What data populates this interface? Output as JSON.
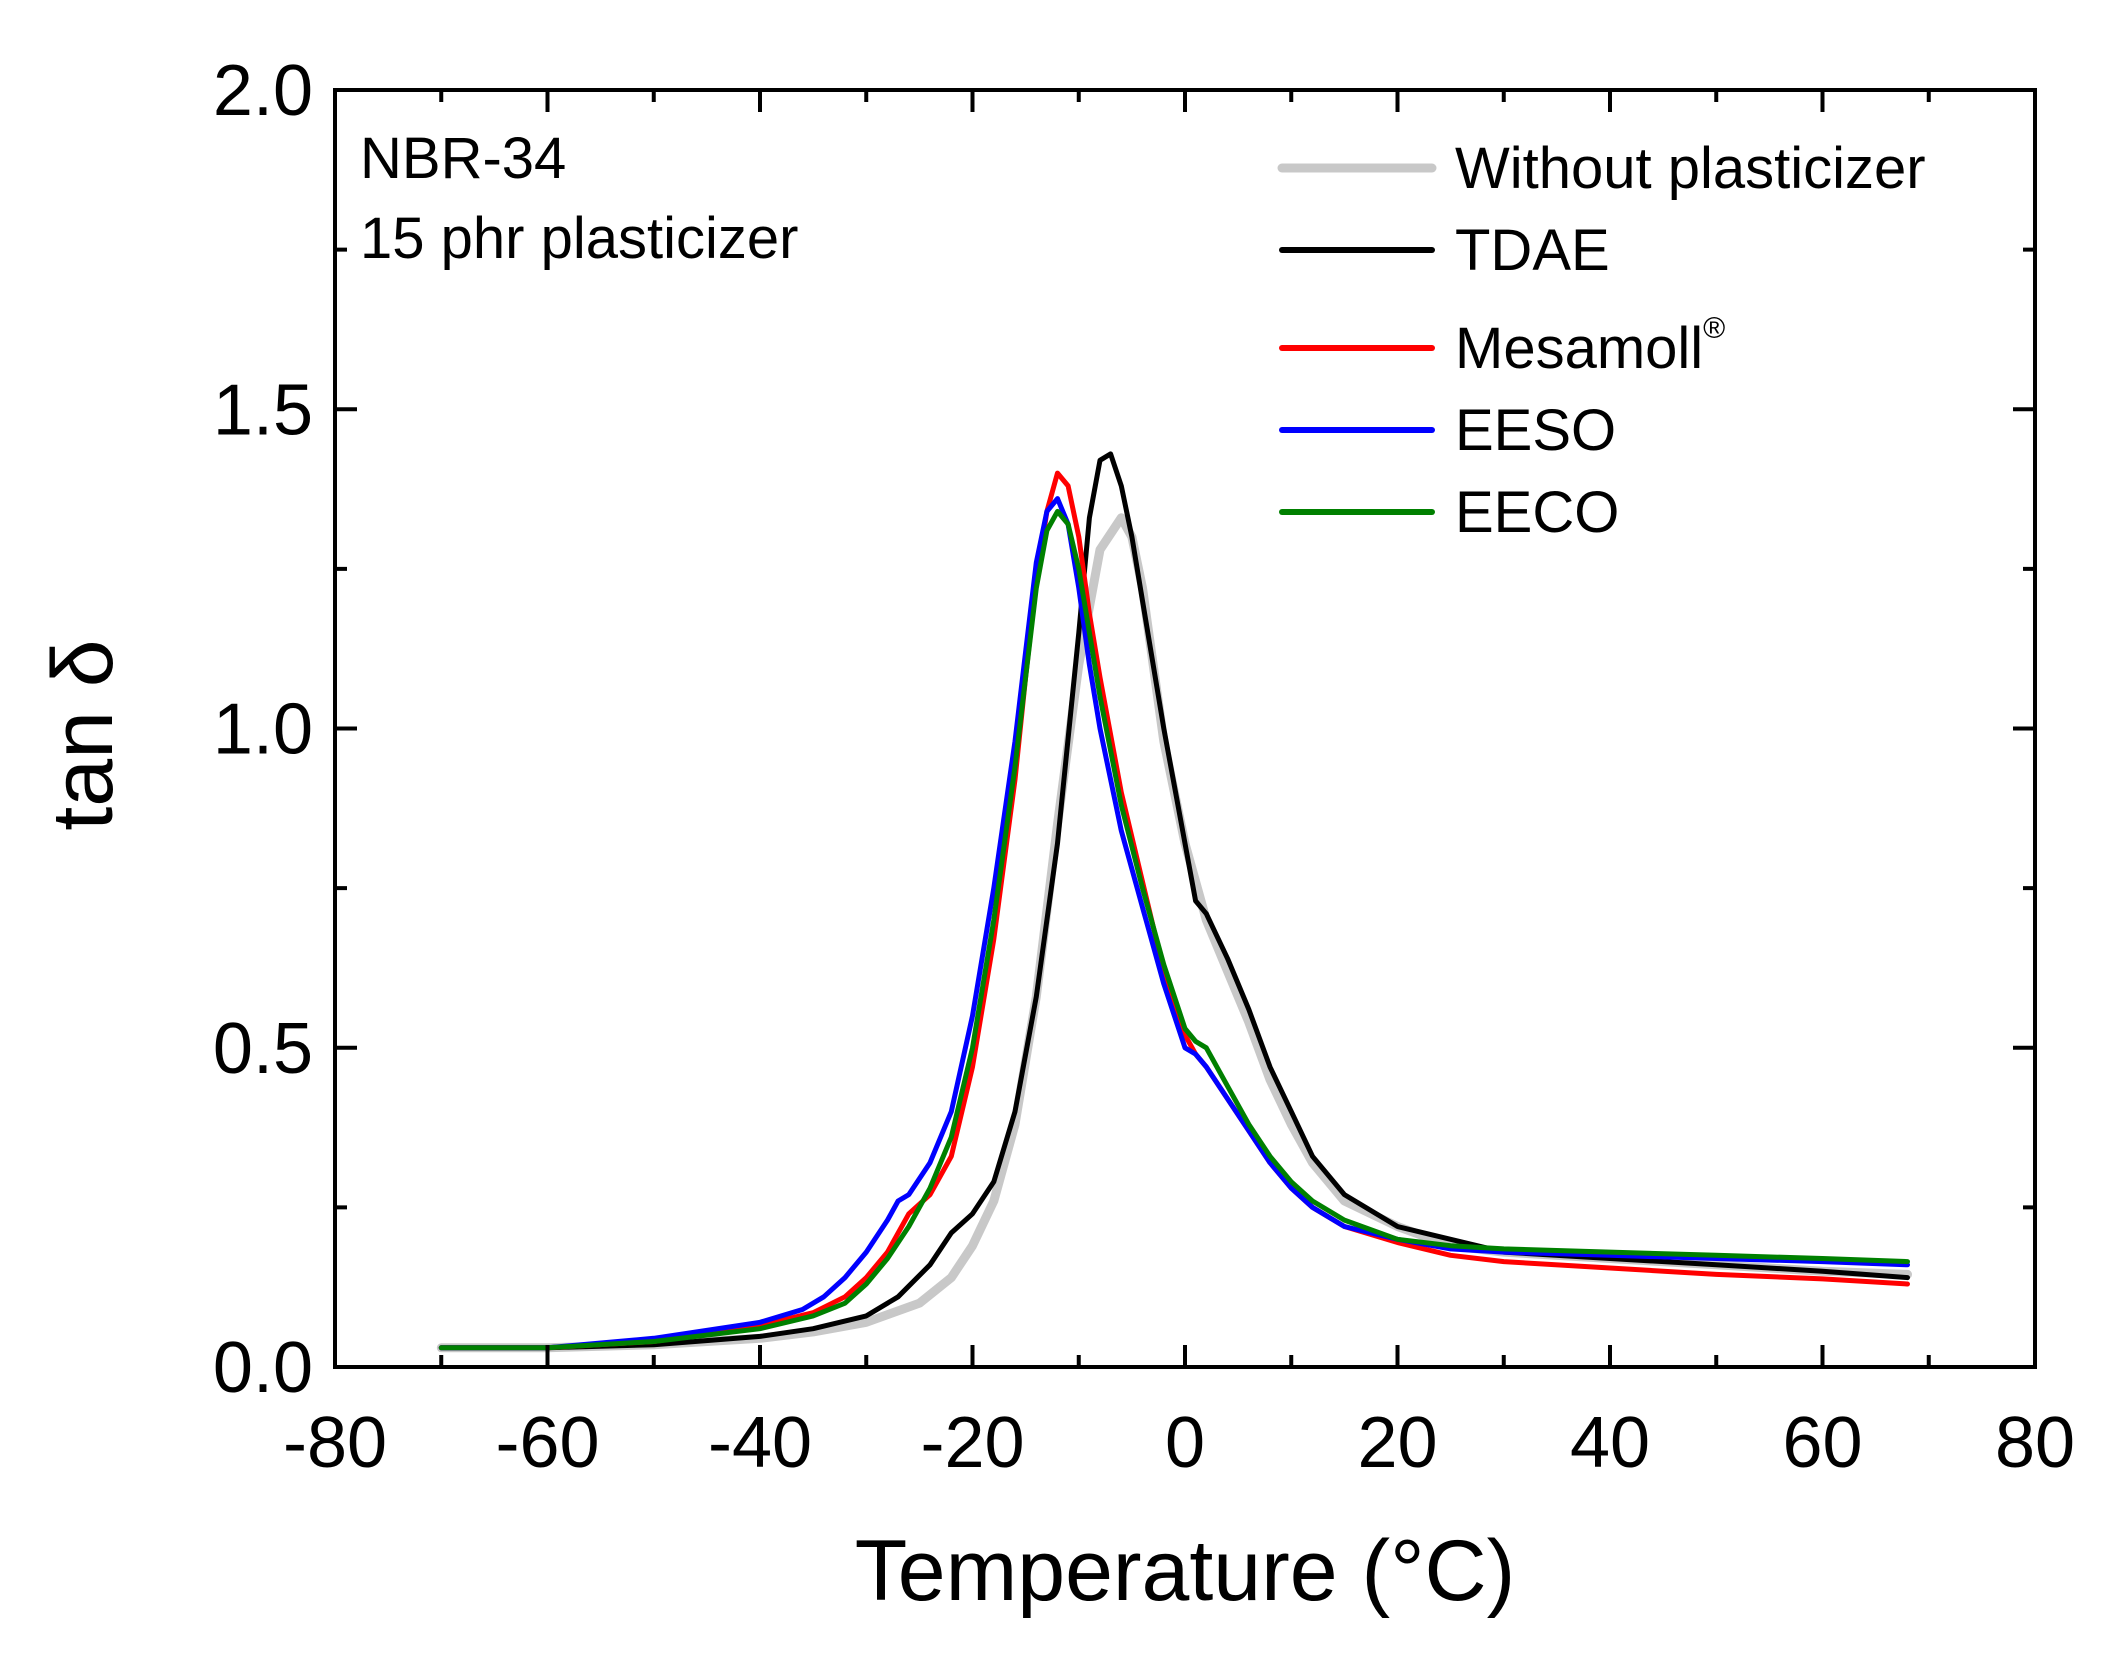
{
  "chart_data": {
    "type": "line",
    "xlabel": "Temperature (°C)",
    "ylabel": "tan δ",
    "xlim": [
      -80,
      80
    ],
    "ylim": [
      0.0,
      2.0
    ],
    "x_ticks": [
      -80,
      -60,
      -40,
      -20,
      0,
      20,
      40,
      60,
      80
    ],
    "x_tick_labels": [
      "-80",
      "-60",
      "-40",
      "-20",
      "0",
      "20",
      "40",
      "60",
      "80"
    ],
    "y_ticks": [
      0.0,
      0.5,
      1.0,
      1.5,
      2.0
    ],
    "y_tick_labels": [
      "0.0",
      "0.5",
      "1.0",
      "1.5",
      "2.0"
    ],
    "annotations": [
      "NBR-34",
      "15 phr plasticizer"
    ],
    "legend_position": "top-right",
    "grid": false,
    "series": [
      {
        "name": "Without plasticizer",
        "color": "#c8c8c8",
        "x": [
          -70,
          -60,
          -50,
          -40,
          -35,
          -30,
          -25,
          -22,
          -20,
          -18,
          -16,
          -14,
          -12,
          -10,
          -8,
          -6,
          -5,
          -4,
          -2,
          0,
          2,
          4,
          6,
          8,
          10,
          12,
          15,
          20,
          25,
          30,
          40,
          50,
          60,
          68
        ],
        "y": [
          0.03,
          0.03,
          0.035,
          0.045,
          0.055,
          0.07,
          0.1,
          0.14,
          0.19,
          0.26,
          0.38,
          0.58,
          0.85,
          1.1,
          1.28,
          1.33,
          1.3,
          1.22,
          0.98,
          0.82,
          0.7,
          0.62,
          0.54,
          0.45,
          0.38,
          0.32,
          0.26,
          0.22,
          0.19,
          0.18,
          0.17,
          0.16,
          0.15,
          0.145
        ]
      },
      {
        "name": "TDAE",
        "color": "#000000",
        "x": [
          -70,
          -60,
          -50,
          -40,
          -35,
          -30,
          -27,
          -24,
          -22,
          -20,
          -18,
          -16,
          -14,
          -12,
          -10,
          -9,
          -8,
          -7,
          -6,
          -5,
          -4,
          -2,
          0,
          1,
          2,
          4,
          6,
          8,
          10,
          12,
          15,
          20,
          25,
          30,
          40,
          50,
          60,
          68
        ],
        "y": [
          0.03,
          0.03,
          0.035,
          0.048,
          0.06,
          0.08,
          0.11,
          0.16,
          0.21,
          0.24,
          0.29,
          0.4,
          0.58,
          0.82,
          1.15,
          1.33,
          1.42,
          1.43,
          1.38,
          1.3,
          1.2,
          1.0,
          0.82,
          0.73,
          0.71,
          0.64,
          0.56,
          0.47,
          0.4,
          0.33,
          0.27,
          0.22,
          0.2,
          0.18,
          0.17,
          0.16,
          0.15,
          0.14
        ]
      },
      {
        "name": "Mesamoll",
        "color": "#ff0000",
        "x": [
          -70,
          -60,
          -50,
          -40,
          -35,
          -32,
          -30,
          -28,
          -26,
          -24,
          -22,
          -20,
          -18,
          -16,
          -15,
          -14,
          -13,
          -12,
          -11,
          -10,
          -9,
          -8,
          -6,
          -4,
          -2,
          0,
          1,
          2,
          4,
          6,
          8,
          10,
          12,
          15,
          20,
          25,
          30,
          40,
          50,
          60,
          68
        ],
        "y": [
          0.03,
          0.03,
          0.04,
          0.065,
          0.085,
          0.11,
          0.14,
          0.18,
          0.24,
          0.27,
          0.33,
          0.47,
          0.67,
          0.92,
          1.08,
          1.23,
          1.34,
          1.4,
          1.38,
          1.3,
          1.18,
          1.08,
          0.9,
          0.76,
          0.62,
          0.52,
          0.49,
          0.47,
          0.42,
          0.37,
          0.32,
          0.28,
          0.25,
          0.22,
          0.195,
          0.175,
          0.165,
          0.155,
          0.145,
          0.138,
          0.13
        ]
      },
      {
        "name": "EESO",
        "color": "#0000ff",
        "x": [
          -70,
          -60,
          -50,
          -40,
          -36,
          -34,
          -32,
          -30,
          -28,
          -27,
          -26,
          -24,
          -22,
          -20,
          -18,
          -16,
          -15,
          -14,
          -13,
          -12,
          -11,
          -10,
          -9,
          -8,
          -6,
          -4,
          -2,
          0,
          1,
          2,
          4,
          6,
          8,
          10,
          12,
          15,
          20,
          25,
          30,
          40,
          50,
          60,
          68
        ],
        "y": [
          0.03,
          0.03,
          0.045,
          0.07,
          0.09,
          0.11,
          0.14,
          0.18,
          0.23,
          0.26,
          0.27,
          0.32,
          0.4,
          0.55,
          0.75,
          0.98,
          1.12,
          1.26,
          1.34,
          1.36,
          1.32,
          1.22,
          1.1,
          1.0,
          0.84,
          0.72,
          0.6,
          0.5,
          0.49,
          0.47,
          0.42,
          0.37,
          0.32,
          0.28,
          0.25,
          0.22,
          0.2,
          0.185,
          0.18,
          0.175,
          0.17,
          0.165,
          0.16
        ]
      },
      {
        "name": "EECO",
        "color": "#008000",
        "x": [
          -70,
          -60,
          -50,
          -40,
          -35,
          -32,
          -30,
          -28,
          -26,
          -24,
          -22,
          -20,
          -18,
          -16,
          -15,
          -14,
          -13,
          -12,
          -11,
          -10,
          -8,
          -6,
          -4,
          -2,
          0,
          1,
          2,
          4,
          6,
          8,
          10,
          12,
          15,
          20,
          25,
          30,
          40,
          50,
          60,
          68
        ],
        "y": [
          0.03,
          0.03,
          0.04,
          0.06,
          0.08,
          0.1,
          0.13,
          0.17,
          0.22,
          0.28,
          0.36,
          0.5,
          0.7,
          0.94,
          1.08,
          1.22,
          1.31,
          1.34,
          1.32,
          1.25,
          1.05,
          0.88,
          0.75,
          0.63,
          0.53,
          0.51,
          0.5,
          0.44,
          0.38,
          0.33,
          0.29,
          0.26,
          0.23,
          0.2,
          0.19,
          0.185,
          0.18,
          0.175,
          0.17,
          0.165
        ]
      }
    ]
  },
  "legend": {
    "items": [
      {
        "label": "Without plasticizer",
        "color": "#c8c8c8",
        "sup": ""
      },
      {
        "label": "TDAE",
        "color": "#000000",
        "sup": ""
      },
      {
        "label": "Mesamoll",
        "color": "#ff0000",
        "sup": "®"
      },
      {
        "label": "EESO",
        "color": "#0000ff",
        "sup": ""
      },
      {
        "label": "EECO",
        "color": "#008000",
        "sup": ""
      }
    ]
  }
}
